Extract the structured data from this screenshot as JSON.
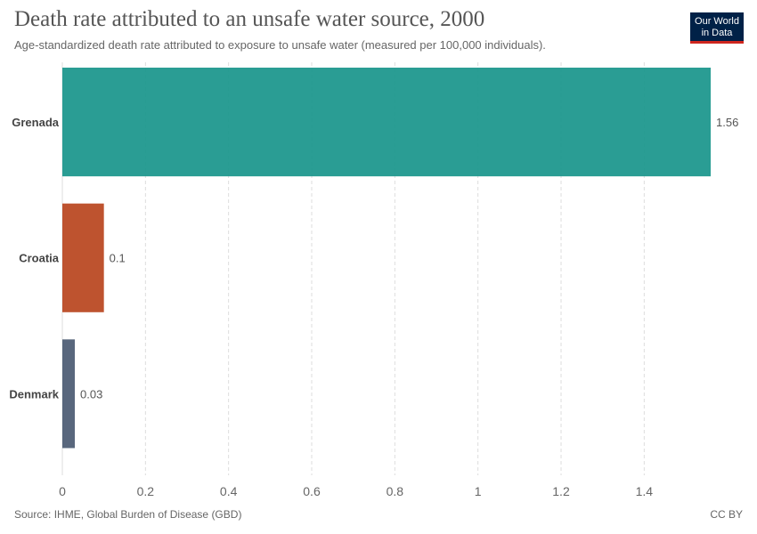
{
  "header": {
    "title": "Death rate attributed to an unsafe water source, 2000",
    "subtitle": "Age-standardized death rate attributed to exposure to unsafe water (measured per 100,000 individuals).",
    "logo_line1": "Our World",
    "logo_line2": "in Data"
  },
  "footer": {
    "source": "Source: IHME, Global Burden of Disease (GBD)",
    "license": "CC BY"
  },
  "colors": {
    "logo_bg": "#002147",
    "logo_accent": "#ce261e"
  },
  "chart_data": {
    "type": "bar",
    "orientation": "horizontal",
    "categories": [
      "Grenada",
      "Croatia",
      "Denmark"
    ],
    "values": [
      1.56,
      0.1,
      0.03
    ],
    "value_labels": [
      "1.56",
      "0.1",
      "0.03"
    ],
    "colors": [
      "#18958b",
      "#b8441d",
      "#4b5a72"
    ],
    "xlim": [
      0,
      1.56
    ],
    "xticks": [
      0,
      0.2,
      0.4,
      0.6,
      0.8,
      1,
      1.2,
      1.4
    ],
    "xtick_labels": [
      "0",
      "0.2",
      "0.4",
      "0.6",
      "0.8",
      "1",
      "1.2",
      "1.4"
    ],
    "grid": true,
    "xlabel": "",
    "ylabel": ""
  }
}
